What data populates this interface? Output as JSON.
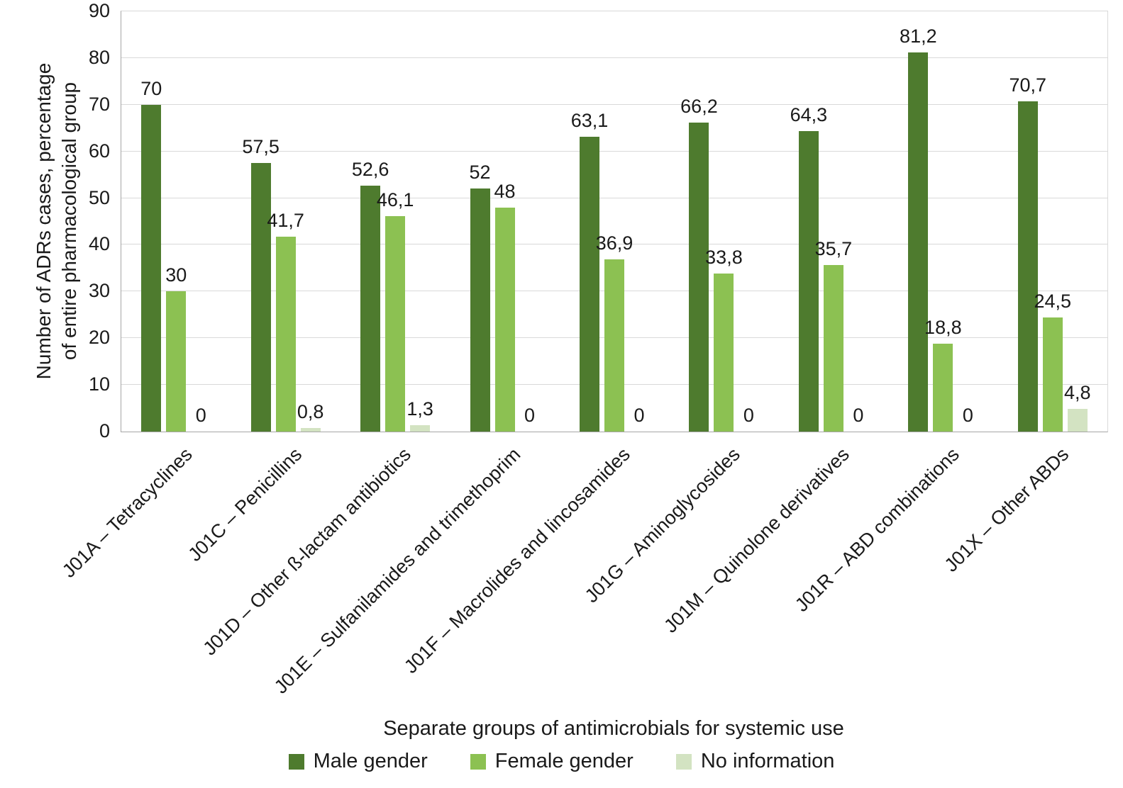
{
  "chart_data": {
    "type": "bar",
    "title": "",
    "xlabel": "Separate groups of antimicrobials for systemic use",
    "ylabel": "Number of ADRs cases, percentage\nof entire pharmacological group",
    "ylim": [
      0,
      90
    ],
    "yticks": [
      0,
      10,
      20,
      30,
      40,
      50,
      60,
      70,
      80,
      90
    ],
    "grid": true,
    "legend_position": "bottom",
    "categories": [
      "J01A – Tetracyclines",
      "J01C – Penicillins",
      "J01D – Other ß-lactam antibiotics",
      "J01E – Sulfanilamides and trimethoprim",
      "J01F – Macrolides and lincosamides",
      "J01G – Aminoglycosides",
      "J01M – Quinolone derivatives",
      "J01R – ABD combinations",
      "J01X – Other ABDs"
    ],
    "series": [
      {
        "name": "Male gender",
        "color": "#4e7b2e",
        "values": [
          70,
          57.5,
          52.6,
          52,
          63.1,
          66.2,
          64.3,
          81.2,
          70.7
        ],
        "labels": [
          "70",
          "57,5",
          "52,6",
          "52",
          "63,1",
          "66,2",
          "64,3",
          "81,2",
          "70,7"
        ]
      },
      {
        "name": "Female gender",
        "color": "#8cc152",
        "values": [
          30,
          41.7,
          46.1,
          48,
          36.9,
          33.8,
          35.7,
          18.8,
          24.5
        ],
        "labels": [
          "30",
          "41,7",
          "46,1",
          "48",
          "36,9",
          "33,8",
          "35,7",
          "18,8",
          "24,5"
        ]
      },
      {
        "name": "No information",
        "color": "#d3e3c2",
        "values": [
          0,
          0.8,
          1.3,
          0,
          0,
          0,
          0,
          0,
          4.8
        ],
        "labels": [
          "0",
          "0,8",
          "1,3",
          "0",
          "0",
          "0",
          "0",
          "0",
          "4,8"
        ]
      }
    ]
  }
}
